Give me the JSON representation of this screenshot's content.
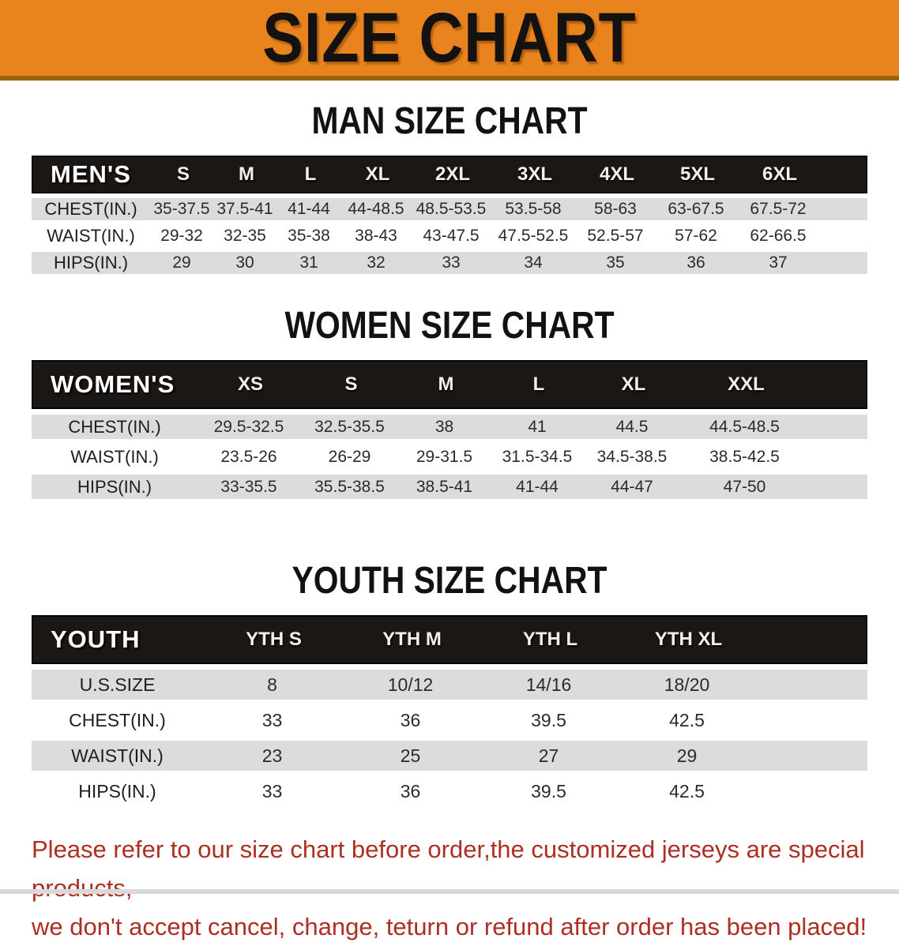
{
  "banner": {
    "title": "SIZE CHART"
  },
  "colors": {
    "banner_bg": "#E9831E",
    "banner_edge": "#9C6410",
    "header_bar": "#1B1715",
    "row_stripe": "#DCDCDC",
    "footnote_red": "#AE2E24"
  },
  "sections": [
    {
      "heading": "MAN SIZE CHART",
      "corner": "MEN'S",
      "columns": [
        "S",
        "M",
        "L",
        "XL",
        "2XL",
        "3XL",
        "4XL",
        "5XL",
        "6XL"
      ],
      "rows": [
        {
          "label": "CHEST(IN.)",
          "values": [
            "35-37.5",
            "37.5-41",
            "41-44",
            "44-48.5",
            "48.5-53.5",
            "53.5-58",
            "58-63",
            "63-67.5",
            "67.5-72"
          ]
        },
        {
          "label": "WAIST(IN.)",
          "values": [
            "29-32",
            "32-35",
            "35-38",
            "38-43",
            "43-47.5",
            "47.5-52.5",
            "52.5-57",
            "57-62",
            "62-66.5"
          ]
        },
        {
          "label": "HIPS(IN.)",
          "values": [
            "29",
            "30",
            "31",
            "32",
            "33",
            "34",
            "35",
            "36",
            "37"
          ]
        }
      ]
    },
    {
      "heading": "WOMEN SIZE CHART",
      "corner": "WOMEN'S",
      "columns": [
        "XS",
        "S",
        "M",
        "L",
        "XL",
        "XXL"
      ],
      "rows": [
        {
          "label": "CHEST(IN.)",
          "values": [
            "29.5-32.5",
            "32.5-35.5",
            "38",
            "41",
            "44.5",
            "44.5-48.5"
          ]
        },
        {
          "label": "WAIST(IN.)",
          "values": [
            "23.5-26",
            "26-29",
            "29-31.5",
            "31.5-34.5",
            "34.5-38.5",
            "38.5-42.5"
          ]
        },
        {
          "label": "HIPS(IN.)",
          "values": [
            "33-35.5",
            "35.5-38.5",
            "38.5-41",
            "41-44",
            "44-47",
            "47-50"
          ]
        }
      ]
    },
    {
      "heading": "YOUTH SIZE CHART",
      "corner": "YOUTH",
      "columns": [
        "YTH S",
        "YTH M",
        "YTH L",
        "YTH XL"
      ],
      "rows": [
        {
          "label": "U.S.SIZE",
          "values": [
            "8",
            "10/12",
            "14/16",
            "18/20"
          ]
        },
        {
          "label": "CHEST(IN.)",
          "values": [
            "33",
            "36",
            "39.5",
            "42.5"
          ]
        },
        {
          "label": "WAIST(IN.)",
          "values": [
            "23",
            "25",
            "27",
            "29"
          ]
        },
        {
          "label": "HIPS(IN.)",
          "values": [
            "33",
            "36",
            "39.5",
            "42.5"
          ]
        }
      ]
    }
  ],
  "footnote": {
    "line1": "Please refer to our size chart before order,the customized jerseys are special products,",
    "line2": "we don't accept cancel, change, teturn or refund after order has been placed!"
  }
}
